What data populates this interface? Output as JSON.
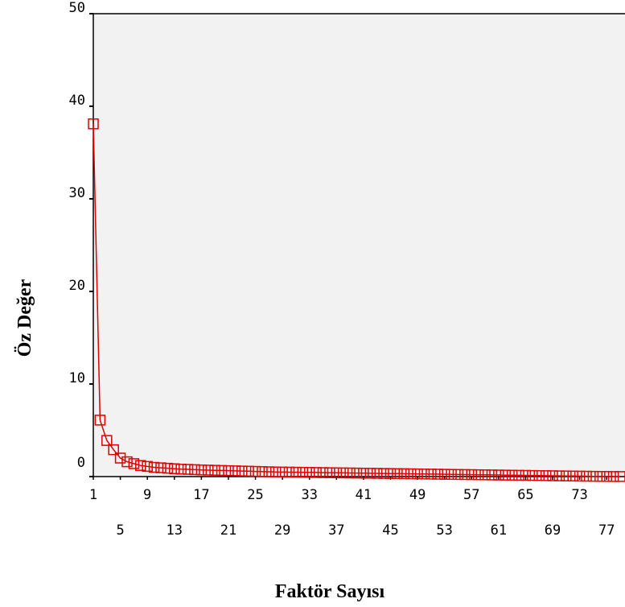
{
  "chart_data": {
    "type": "line",
    "title": "",
    "xlabel": "Faktör Sayısı",
    "ylabel": "Öz Değer",
    "x_tick_labels_row1": [
      "1",
      "9",
      "17",
      "25",
      "33",
      "41",
      "49",
      "57",
      "65",
      "73"
    ],
    "x_tick_labels_row2": [
      "5",
      "13",
      "21",
      "29",
      "37",
      "45",
      "53",
      "61",
      "69",
      "77"
    ],
    "y_ticks": [
      0,
      10,
      20,
      30,
      40,
      50
    ],
    "xlim": [
      1,
      79
    ],
    "ylim": [
      0,
      50
    ],
    "grid": false,
    "background_color": "#f2f2f2",
    "series": [
      {
        "color": "#e00000",
        "marker": "square-open",
        "x": [
          1,
          2,
          3,
          4,
          5,
          6,
          7,
          8,
          9,
          10,
          11,
          12,
          13,
          14,
          15,
          16,
          17,
          18,
          19,
          20,
          21,
          22,
          23,
          24,
          25,
          26,
          27,
          28,
          29,
          30,
          31,
          32,
          33,
          34,
          35,
          36,
          37,
          38,
          39,
          40,
          41,
          42,
          43,
          44,
          45,
          46,
          47,
          48,
          49,
          50,
          51,
          52,
          53,
          54,
          55,
          56,
          57,
          58,
          59,
          60,
          61,
          62,
          63,
          64,
          65,
          66,
          67,
          68,
          69,
          70,
          71,
          72,
          73,
          74,
          75,
          76,
          77,
          78,
          79
        ],
        "values": [
          38.1,
          6.1,
          3.9,
          2.9,
          2.0,
          1.6,
          1.4,
          1.2,
          1.1,
          1.0,
          0.95,
          0.9,
          0.85,
          0.8,
          0.78,
          0.75,
          0.72,
          0.7,
          0.68,
          0.66,
          0.64,
          0.62,
          0.6,
          0.58,
          0.56,
          0.54,
          0.52,
          0.5,
          0.49,
          0.48,
          0.47,
          0.46,
          0.45,
          0.44,
          0.43,
          0.42,
          0.41,
          0.4,
          0.39,
          0.38,
          0.37,
          0.36,
          0.35,
          0.34,
          0.33,
          0.32,
          0.31,
          0.3,
          0.29,
          0.28,
          0.27,
          0.26,
          0.25,
          0.24,
          0.23,
          0.22,
          0.21,
          0.2,
          0.19,
          0.18,
          0.17,
          0.16,
          0.15,
          0.14,
          0.13,
          0.12,
          0.11,
          0.1,
          0.09,
          0.08,
          0.07,
          0.06,
          0.05,
          0.04,
          0.03,
          0.02,
          0.02,
          0.01,
          0.01
        ]
      }
    ]
  }
}
